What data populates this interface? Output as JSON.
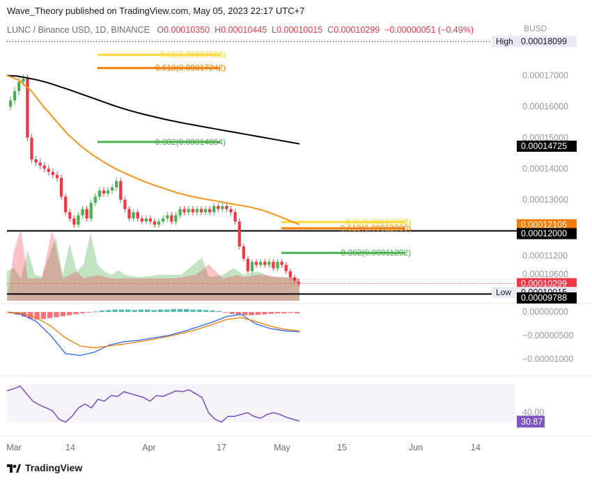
{
  "header": {
    "author_line": "Wave_Theory published on TradingView.com, May 05, 2023 22:17 UTC+7",
    "symbol": "LUNC / Binance USD, 1D, BINANCE",
    "ohlc": [
      {
        "k": "O",
        "v": "0.00010350"
      },
      {
        "k": "H",
        "v": "0.00010445"
      },
      {
        "k": "L",
        "v": "0.00010015"
      },
      {
        "k": "C",
        "v": "0.00010299"
      }
    ],
    "change": "−0.00000051 (−0.49%)",
    "currency": "BUSD"
  },
  "brand": "TradingView",
  "colors": {
    "up": "#4caf50",
    "down": "#f23645",
    "ema_long": "#000000",
    "ema_short": "#f7931a",
    "fib_green": "#4caf50",
    "fib_orange": "#f57c00",
    "fib_yellow": "#fdd835",
    "macd_line": "#2962ff",
    "signal_line": "#f57c00",
    "rsi_line": "#7e57c2"
  },
  "chart_data": [
    {
      "type": "candlestick",
      "name": "main",
      "x_ticks": [
        "Mar",
        "14",
        "Apr",
        "17",
        "May",
        "15",
        "Jun",
        "14"
      ],
      "y_ticks": [
        0.00017,
        0.00016,
        0.00015,
        0.00014,
        0.00013,
        0.000112,
        0.000106
      ],
      "y_tick_labels": [
        "0.00017000",
        "0.00016000",
        "0.00015000",
        "0.00014000",
        "0.00013000",
        "0.00011200",
        "0.00010600"
      ],
      "ylim": [
        9.75e-05,
        0.000182
      ],
      "price_tags": [
        {
          "label": "High",
          "value": "0.00018099",
          "style": "neutral"
        },
        {
          "value": "0.00014725",
          "style": "black"
        },
        {
          "value": "0.00012105",
          "style": "orange"
        },
        {
          "value": "0.00012000",
          "style": "black"
        },
        {
          "value": "0.00010299",
          "sub": "08:42:40",
          "style": "red"
        },
        {
          "label": "Low",
          "value": "0.00010015",
          "style": "neutral"
        },
        {
          "value": "0.00009788",
          "style": "black"
        }
      ],
      "fib_labels": [
        {
          "text": "0.65(0.00017668)",
          "color": "#fdd835"
        },
        {
          "text": "0.618(0.00017242)",
          "color": "#f57c00"
        },
        {
          "text": "0.382(0.00014864)",
          "color": "#4caf50"
        },
        {
          "text": "0.65(0.00012283)",
          "color": "#fdd835"
        },
        {
          "text": "0.618(0.00012080)",
          "color": "#f57c00"
        },
        {
          "text": "0.382(0.00011292)",
          "color": "#4caf50"
        }
      ],
      "close": [
        0.000162,
        0.000165,
        0.000168,
        0.000169,
        0.00015,
        0.000143,
        0.000142,
        0.000141,
        0.00014,
        0.000139,
        0.000138,
        0.000137,
        0.000131,
        0.000126,
        0.000124,
        0.000122,
        0.000125,
        0.000127,
        0.000124,
        0.000129,
        0.000131,
        0.000133,
        0.000132,
        0.000133,
        0.000134,
        0.000136,
        0.00013,
        0.000127,
        0.000124,
        0.000126,
        0.000124,
        0.000123,
        0.000124,
        0.000123,
        0.000122,
        0.000123,
        0.000124,
        0.000125,
        0.000123,
        0.000125,
        0.000127,
        0.000126,
        0.000127,
        0.000126,
        0.000127,
        0.000126,
        0.000127,
        0.000126,
        0.000128,
        0.000127,
        0.000128,
        0.000127,
        0.000126,
        0.000123,
        0.000115,
        0.000111,
        0.000107,
        0.00011,
        0.000109,
        0.00011,
        0.000109,
        0.00011,
        0.000108,
        0.00011,
        0.000109,
        0.000107,
        0.000105,
        0.000104,
        0.000103
      ],
      "open": [
        0.00016,
        0.000162,
        0.000165,
        0.000168,
        0.000169,
        0.00015,
        0.000143,
        0.000142,
        0.000141,
        0.00014,
        0.000139,
        0.000138,
        0.000137,
        0.000131,
        0.000126,
        0.000124,
        0.000122,
        0.000125,
        0.000127,
        0.000124,
        0.000129,
        0.000131,
        0.000133,
        0.000132,
        0.000133,
        0.000134,
        0.000136,
        0.00013,
        0.000127,
        0.000124,
        0.000126,
        0.000124,
        0.000123,
        0.000124,
        0.000123,
        0.000122,
        0.000123,
        0.000124,
        0.000125,
        0.000123,
        0.000125,
        0.000127,
        0.000126,
        0.000127,
        0.000126,
        0.000127,
        0.000126,
        0.000127,
        0.000126,
        0.000128,
        0.000127,
        0.000128,
        0.000127,
        0.000126,
        0.000123,
        0.000115,
        0.000111,
        0.000107,
        0.00011,
        0.000109,
        0.00011,
        0.000109,
        0.00011,
        0.000108,
        0.00011,
        0.000109,
        0.000107,
        0.000105,
        0.0001035
      ],
      "ema_long_y": [
        0.00017,
        0.0001698,
        0.0001692,
        0.0001685,
        0.0001676,
        0.0001665,
        0.0001654,
        0.0001642,
        0.000163,
        0.0001618,
        0.0001606,
        0.0001595,
        0.0001585,
        0.0001576,
        0.0001568,
        0.000156,
        0.0001553,
        0.0001546,
        0.000154,
        0.0001534,
        0.0001528,
        0.0001522,
        0.0001516,
        0.000151,
        0.0001504,
        0.0001498,
        0.0001492,
        0.0001486,
        0.000148
      ],
      "ema_short_y": [
        0.00017,
        0.0001685,
        0.000165,
        0.00016,
        0.0001555,
        0.000151,
        0.0001475,
        0.0001445,
        0.000142,
        0.0001398,
        0.000138,
        0.0001363,
        0.0001348,
        0.0001335,
        0.0001322,
        0.0001312,
        0.0001304,
        0.0001297,
        0.000129,
        0.0001283,
        0.0001276,
        0.0001266,
        0.0001252,
        0.0001236,
        0.000122
      ]
    },
    {
      "type": "bar",
      "name": "macd",
      "y_ticks": [
        0,
        -5e-06,
        -1e-05
      ],
      "y_tick_labels": [
        "0.00000000",
        "−0.00000500",
        "−0.00001000"
      ],
      "ylim": [
        -1.28e-05,
        1.2e-06
      ]
    },
    {
      "type": "line",
      "name": "rsi",
      "y_ticks": [
        40
      ],
      "y_tick_labels": [
        "40.00"
      ],
      "current": "30.87",
      "ylim": [
        20,
        75
      ]
    }
  ]
}
